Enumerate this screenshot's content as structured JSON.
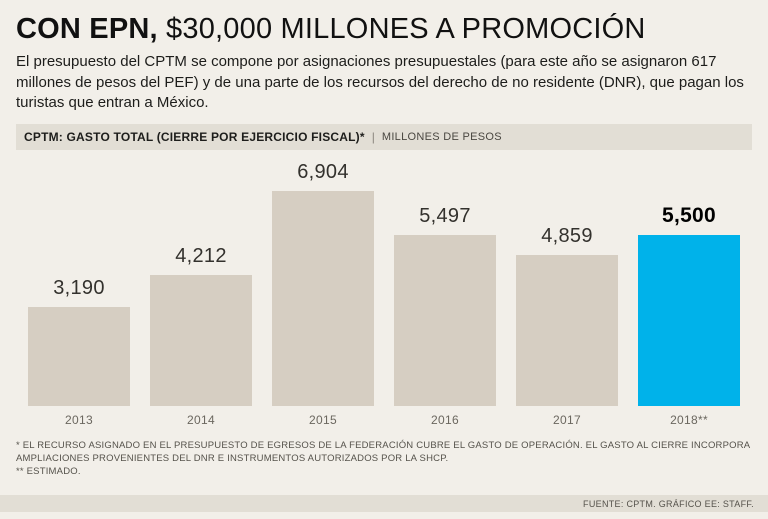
{
  "header": {
    "title_bold": "CON EPN,",
    "title_rest": " $30,000 MILLONES A PROMOCIÓN",
    "intro": "El presupuesto del CPTM se compone por asignaciones presupuestales (para este año se asignaron 617 millones de pesos del PEF) y de una parte de los recursos del derecho de no residente (DNR), que pagan los turistas que entran a México."
  },
  "chart_header": {
    "title": "CPTM: GASTO TOTAL (CIERRE POR EJERCICIO FISCAL)*",
    "separator": "|",
    "units": "MILLONES DE PESOS"
  },
  "chart_data": {
    "type": "bar",
    "title": "CPTM: GASTO TOTAL (CIERRE POR EJERCICIO FISCAL)*",
    "ylabel": "MILLONES DE PESOS",
    "categories": [
      "2013",
      "2014",
      "2015",
      "2016",
      "2017",
      "2018**"
    ],
    "values": [
      3190,
      4212,
      6904,
      5497,
      4859,
      5500
    ],
    "value_labels": [
      "3,190",
      "4,212",
      "6,904",
      "5,497",
      "4,859",
      "5,500"
    ],
    "highlight_index": 5,
    "colors": {
      "bar": "#d6cec2",
      "highlight": "#00b2ea"
    },
    "ylim": [
      0,
      7000
    ],
    "grid": false,
    "legend": "none"
  },
  "footnotes": {
    "note1": "* EL RECURSO ASIGNADO EN EL PRESUPUESTO DE EGRESOS DE LA FEDERACIÓN CUBRE EL GASTO DE OPERACIÓN. EL GASTO AL CIERRE INCORPORA AMPLIACIONES PROVENIENTES DEL DNR E INSTRUMENTOS AUTORIZADOS POR LA SHCP.",
    "note2": "** ESTIMADO."
  },
  "source": "FUENTE: CPTM. GRÁFICO EE: STAFF."
}
